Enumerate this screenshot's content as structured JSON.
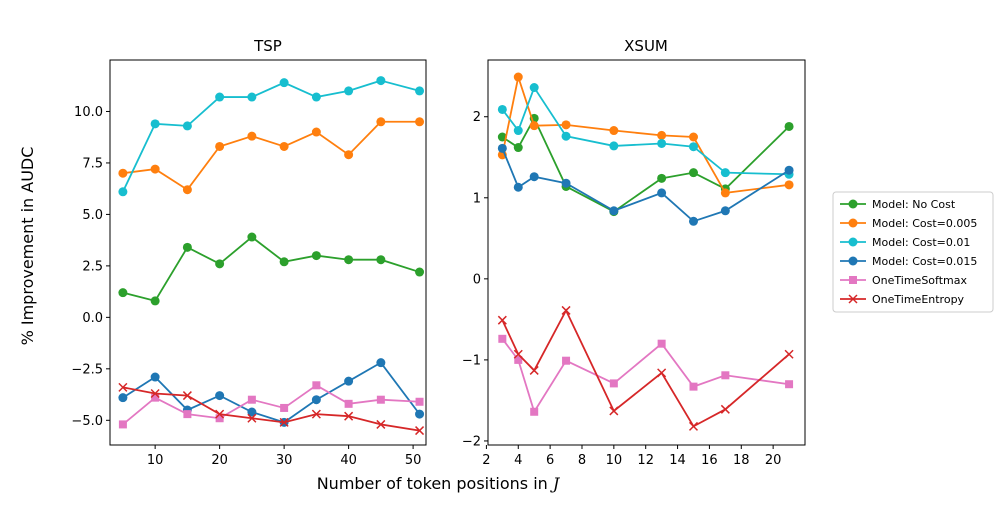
{
  "figure": {
    "ylabel": "% Improvement in AUDC",
    "xlabel_text": "Number of token positions in ",
    "xlabel_symbol": "J"
  },
  "legend": [
    {
      "name": "Model: No Cost",
      "color": "#2ca02c",
      "marker": "circle"
    },
    {
      "name": "Model: Cost=0.005",
      "color": "#ff7f0e",
      "marker": "circle"
    },
    {
      "name": "Model: Cost=0.01",
      "color": "#17becf",
      "marker": "circle"
    },
    {
      "name": "Model: Cost=0.015",
      "color": "#1f77b4",
      "marker": "circle"
    },
    {
      "name": "OneTimeSoftmax",
      "color": "#e377c2",
      "marker": "square"
    },
    {
      "name": "OneTimeEntropy",
      "color": "#d62728",
      "marker": "x"
    }
  ],
  "chart_data": [
    {
      "type": "line",
      "title": "TSP",
      "xlim": [
        3,
        52
      ],
      "ylim": [
        -6.2,
        12.5
      ],
      "xticks": [
        10,
        20,
        30,
        40,
        50
      ],
      "yticks": [
        -5.0,
        -2.5,
        0.0,
        2.5,
        5.0,
        7.5,
        10.0
      ],
      "ytick_labels": [
        "−5.0",
        "−2.5",
        "0.0",
        "2.5",
        "5.0",
        "7.5",
        "10.0"
      ],
      "x": [
        5,
        10,
        15,
        20,
        25,
        30,
        35,
        40,
        45,
        51
      ],
      "series": [
        {
          "name": "Model: No Cost",
          "values": [
            1.2,
            0.8,
            3.4,
            2.6,
            3.9,
            2.7,
            3.0,
            2.8,
            2.8,
            2.2
          ]
        },
        {
          "name": "Model: Cost=0.005",
          "values": [
            7.0,
            7.2,
            6.2,
            8.3,
            8.8,
            8.3,
            9.0,
            7.9,
            9.5,
            9.5
          ]
        },
        {
          "name": "Model: Cost=0.01",
          "values": [
            6.1,
            9.4,
            9.3,
            10.7,
            10.7,
            11.4,
            10.7,
            11.0,
            11.5,
            11.0
          ]
        },
        {
          "name": "Model: Cost=0.015",
          "values": [
            -3.9,
            -2.9,
            -4.5,
            -3.8,
            -4.6,
            -5.1,
            -4.0,
            -3.1,
            -2.2,
            -4.7
          ]
        },
        {
          "name": "OneTimeSoftmax",
          "values": [
            -5.2,
            -3.9,
            -4.7,
            -4.9,
            -4.0,
            -4.4,
            -3.3,
            -4.2,
            -4.0,
            -4.1
          ]
        },
        {
          "name": "OneTimeEntropy",
          "values": [
            -3.4,
            -3.7,
            -3.8,
            -4.7,
            -4.9,
            -5.1,
            -4.7,
            -4.8,
            -5.2,
            -5.5
          ]
        }
      ]
    },
    {
      "type": "line",
      "title": "XSUM",
      "xlim": [
        2.1,
        22
      ],
      "ylim": [
        -2.05,
        2.7
      ],
      "xticks": [
        2,
        4,
        6,
        8,
        10,
        12,
        14,
        16,
        18,
        20
      ],
      "yticks": [
        -2,
        -1,
        0,
        1,
        2
      ],
      "ytick_labels": [
        "−2",
        "−1",
        "0",
        "1",
        "2"
      ],
      "x": [
        3,
        4,
        5,
        7,
        10,
        13,
        15,
        17,
        21
      ],
      "series": [
        {
          "name": "Model: No Cost",
          "values": [
            1.75,
            1.62,
            1.98,
            1.14,
            0.83,
            1.24,
            1.31,
            1.11,
            1.88
          ]
        },
        {
          "name": "Model: Cost=0.005",
          "values": [
            1.53,
            2.49,
            1.89,
            1.9,
            1.83,
            1.77,
            1.75,
            1.06,
            1.16
          ]
        },
        {
          "name": "Model: Cost=0.01",
          "values": [
            2.09,
            1.83,
            2.36,
            1.76,
            1.64,
            1.67,
            1.63,
            1.31,
            1.29
          ]
        },
        {
          "name": "Model: Cost=0.015",
          "values": [
            1.61,
            1.13,
            1.26,
            1.18,
            0.84,
            1.06,
            0.71,
            0.84,
            1.34
          ]
        },
        {
          "name": "OneTimeSoftmax",
          "values": [
            -0.74,
            -1.0,
            -1.64,
            -1.01,
            -1.29,
            -0.8,
            -1.33,
            -1.19,
            -1.3
          ]
        },
        {
          "name": "OneTimeEntropy",
          "values": [
            -0.51,
            -0.93,
            -1.13,
            -0.39,
            -1.63,
            -1.16,
            -1.82,
            -1.61,
            -0.93
          ]
        }
      ]
    }
  ]
}
